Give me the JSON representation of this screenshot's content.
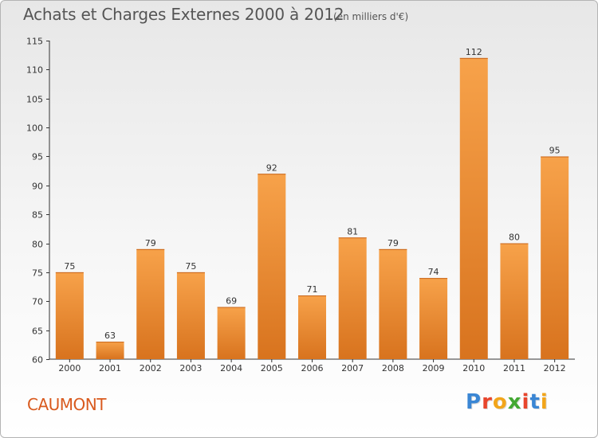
{
  "header": {
    "title": "Achats et Charges Externes 2000 à 2012",
    "subtitle": "(en milliers d'€)"
  },
  "footer": {
    "town": "CAUMONT",
    "logo": "Proxiti",
    "logo_colors": [
      "#3a86d4",
      "#e8452c",
      "#f2a51a",
      "#43a832",
      "#e8452c",
      "#3a86d4",
      "#f2a51a"
    ]
  },
  "chart_data": {
    "type": "bar",
    "title": "Achats et Charges Externes 2000 à 2012",
    "xlabel": "",
    "ylabel": "",
    "categories": [
      "2000",
      "2001",
      "2002",
      "2003",
      "2004",
      "2005",
      "2006",
      "2007",
      "2008",
      "2009",
      "2010",
      "2011",
      "2012"
    ],
    "values": [
      75,
      63,
      79,
      75,
      69,
      92,
      71,
      81,
      79,
      74,
      112,
      80,
      95
    ],
    "ylim": [
      60,
      115
    ],
    "yticks": [
      60,
      65,
      70,
      75,
      80,
      85,
      90,
      95,
      100,
      105,
      110,
      115
    ],
    "grid": false,
    "bar_color_top": "#f7a24a",
    "bar_color_bottom": "#d8731e"
  }
}
